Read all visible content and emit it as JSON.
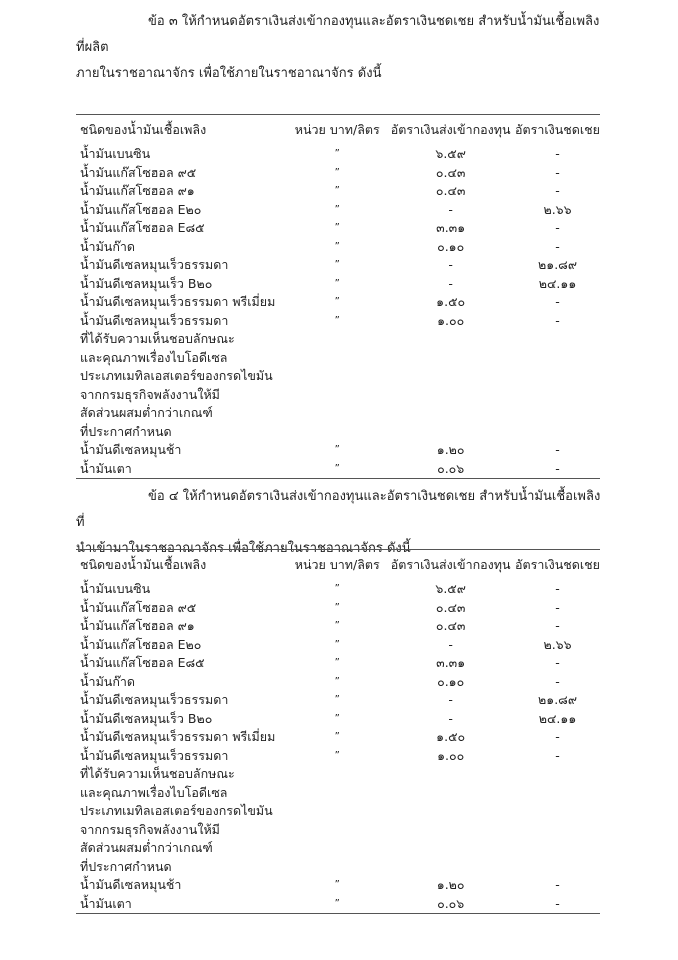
{
  "section3": {
    "line1": "ข้อ ๓ ให้กำหนดอัตราเงินส่งเข้ากองทุนและอัตราเงินชดเชย สำหรับน้ำมันเชื้อเพลิงที่ผลิต",
    "line2": "ภายในราชอาณาจักร เพื่อใช้ภายในราชอาณาจักร ดังนี้"
  },
  "section4": {
    "line1": "ข้อ ๔ ให้กำหนดอัตราเงินส่งเข้ากองทุนและอัตราเงินชดเชย สำหรับน้ำมันเชื้อเพลิงที่",
    "line2": "นำเข้ามาในราชอาณาจักร เพื่อใช้ภายในราชอาณาจักร ดังนี้"
  },
  "table1": {
    "headers": [
      "ชนิดของน้ำมันเชื้อเพลิง",
      "หน่วย บาท/ลิตร",
      "อัตราเงินส่งเข้ากองทุน",
      "อัตราเงินชดเชย"
    ],
    "rows": [
      [
        "น้ำมันเบนซิน",
        "”",
        "๖.๕๙",
        "-"
      ],
      [
        "น้ำมันแก๊สโซฮอล ๙๕",
        "”",
        "๐.๔๓",
        "-"
      ],
      [
        "น้ำมันแก๊สโซฮอล ๙๑",
        "”",
        "๐.๔๓",
        "-"
      ],
      [
        "น้ำมันแก๊สโซฮอล E๒๐",
        "”",
        "-",
        "๒.๖๖"
      ],
      [
        "น้ำมันแก๊สโซฮอล E๘๕",
        "”",
        "๓.๓๑",
        "-"
      ],
      [
        "น้ำมันก๊าด",
        "”",
        "๐.๑๐",
        "-"
      ],
      [
        "น้ำมันดีเซลหมุนเร็วธรรมดา",
        "”",
        "-",
        "๒๑.๘๙"
      ],
      [
        "น้ำมันดีเซลหมุนเร็ว B๒๐",
        "”",
        "-",
        "๒๔.๑๑"
      ],
      [
        "น้ำมันดีเซลหมุนเร็วธรรมดา พรีเมี่ยม",
        "”",
        "๑.๕๐",
        "-"
      ],
      [
        "น้ำมันดีเซลหมุนเร็วธรรมดา",
        "”",
        "๑.๐๐",
        "-"
      ],
      [
        "ที่ได้รับความเห็นชอบลักษณะ",
        "",
        "",
        ""
      ],
      [
        "และคุณภาพเรื่องไบโอดีเซล",
        "",
        "",
        ""
      ],
      [
        "ประเภทเมทิลเอสเตอร์ของกรดไขมัน",
        "",
        "",
        ""
      ],
      [
        "จากกรมธุรกิจพลังงานให้มี",
        "",
        "",
        ""
      ],
      [
        "สัดส่วนผสมต่ำกว่าเกณฑ์",
        "",
        "",
        ""
      ],
      [
        "ที่ประกาศกำหนด",
        "",
        "",
        ""
      ],
      [
        "น้ำมันดีเซลหมุนช้า",
        "”",
        "๑.๒๐",
        "-"
      ],
      [
        "น้ำมันเตา",
        "”",
        "๐.๐๖",
        "-"
      ]
    ]
  },
  "table2": {
    "headers": [
      "ชนิดของน้ำมันเชื้อเพลิง",
      "หน่วย บาท/ลิตร",
      "อัตราเงินส่งเข้ากองทุน",
      "อัตราเงินชดเชย"
    ],
    "rows": [
      [
        "น้ำมันเบนซิน",
        "”",
        "๖.๕๙",
        "-"
      ],
      [
        "น้ำมันแก๊สโซฮอล ๙๕",
        "”",
        "๐.๔๓",
        "-"
      ],
      [
        "น้ำมันแก๊สโซฮอล ๙๑",
        "”",
        "๐.๔๓",
        "-"
      ],
      [
        "น้ำมันแก๊สโซฮอล E๒๐",
        "”",
        "-",
        "๒.๖๖"
      ],
      [
        "น้ำมันแก๊สโซฮอล E๘๕",
        "”",
        "๓.๓๑",
        "-"
      ],
      [
        "น้ำมันก๊าด",
        "”",
        "๐.๑๐",
        "-"
      ],
      [
        "น้ำมันดีเซลหมุนเร็วธรรมดา",
        "”",
        "-",
        "๒๑.๘๙"
      ],
      [
        "น้ำมันดีเซลหมุนเร็ว B๒๐",
        "”",
        "-",
        "๒๔.๑๑"
      ],
      [
        "น้ำมันดีเซลหมุนเร็วธรรมดา พรีเมี่ยม",
        "”",
        "๑.๕๐",
        "-"
      ],
      [
        "น้ำมันดีเซลหมุนเร็วธรรมดา",
        "”",
        "๑.๐๐",
        "-"
      ],
      [
        "ที่ได้รับความเห็นชอบลักษณะ",
        "",
        "",
        ""
      ],
      [
        "และคุณภาพเรื่องไบโอดีเซล",
        "",
        "",
        ""
      ],
      [
        "ประเภทเมทิลเอสเตอร์ของกรดไขมัน",
        "",
        "",
        ""
      ],
      [
        "จากกรมธุรกิจพลังงานให้มี",
        "",
        "",
        ""
      ],
      [
        "สัดส่วนผสมต่ำกว่าเกณฑ์",
        "",
        "",
        ""
      ],
      [
        "ที่ประกาศกำหนด",
        "",
        "",
        ""
      ],
      [
        "น้ำมันดีเซลหมุนช้า",
        "”",
        "๑.๒๐",
        "-"
      ],
      [
        "น้ำมันเตา",
        "”",
        "๐.๐๖",
        "-"
      ]
    ]
  }
}
